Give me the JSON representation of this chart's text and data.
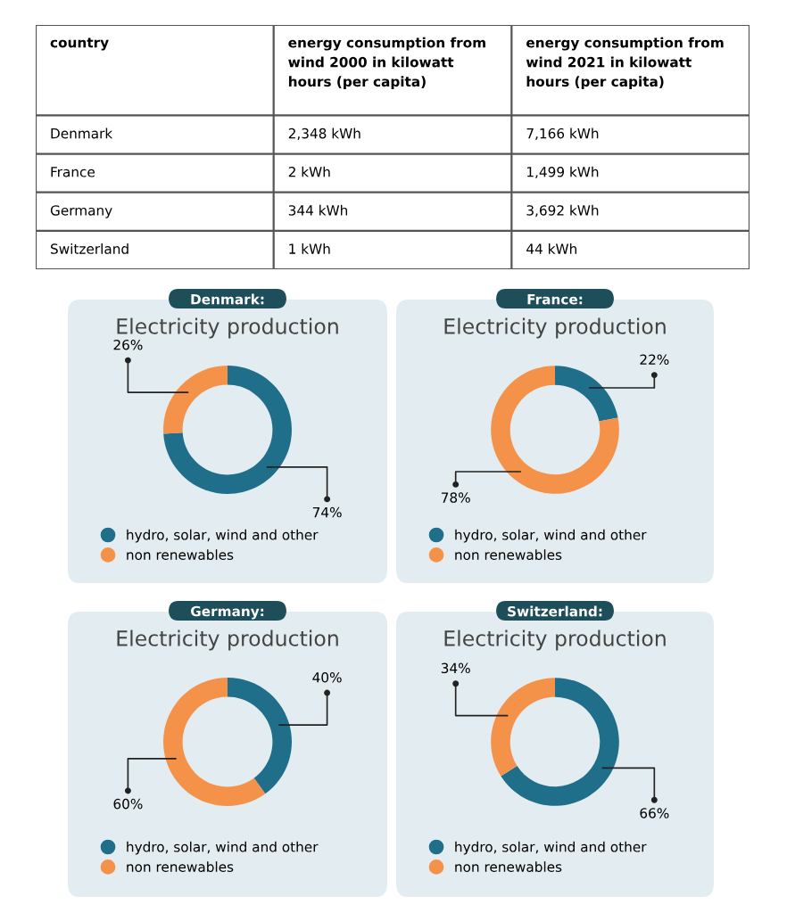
{
  "chart_data": [
    {
      "type": "other",
      "xlabel": "country",
      "categories": [
        "Denmark",
        "France",
        "Germany",
        "Switzerland"
      ],
      "data_labels": true,
      "series": [
        {
          "name": "energy consumption from wind 2000 in kilowatt hours (per capita)",
          "values": [
            2348,
            2,
            344,
            1
          ],
          "value_labels": [
            "2,348 kWh",
            "2 kWh",
            "344 kWh",
            "1 kWh"
          ]
        },
        {
          "name": "energy consumption from wind 2021 in kilowatt hours (per capita)",
          "values": [
            7166,
            1499,
            3692,
            44
          ],
          "value_labels": [
            "7,166 kWh",
            "1,499 kWh",
            "3,692 kWh",
            "44 kWh"
          ]
        }
      ]
    },
    {
      "type": "donut",
      "title": "Denmark:",
      "subtitle": "Electricity production",
      "categories": [
        "hydro, solar, wind and other",
        "non renewables"
      ],
      "values": [
        74,
        26
      ],
      "value_labels": [
        "74%",
        "26%"
      ],
      "colors": [
        "#1f6f8b",
        "#f4924a"
      ],
      "data_labels": true,
      "legend": "bottom"
    },
    {
      "type": "donut",
      "title": "France:",
      "subtitle": "Electricity production",
      "categories": [
        "hydro, solar, wind and other",
        "non renewables"
      ],
      "values": [
        22,
        78
      ],
      "value_labels": [
        "22%",
        "78%"
      ],
      "colors": [
        "#1f6f8b",
        "#f4924a"
      ],
      "data_labels": true,
      "legend": "bottom"
    },
    {
      "type": "donut",
      "title": "Germany:",
      "subtitle": "Electricity production",
      "categories": [
        "hydro, solar, wind and other",
        "non renewables"
      ],
      "values": [
        40,
        60
      ],
      "value_labels": [
        "40%",
        "60%"
      ],
      "colors": [
        "#1f6f8b",
        "#f4924a"
      ],
      "data_labels": true,
      "legend": "bottom"
    },
    {
      "type": "donut",
      "title": "Switzerland:",
      "subtitle": "Electricity production",
      "categories": [
        "hydro, solar, wind and other",
        "non renewables"
      ],
      "values": [
        66,
        34
      ],
      "value_labels": [
        "66%",
        "34%"
      ],
      "colors": [
        "#1f6f8b",
        "#f4924a"
      ],
      "data_labels": true,
      "legend": "bottom"
    }
  ]
}
